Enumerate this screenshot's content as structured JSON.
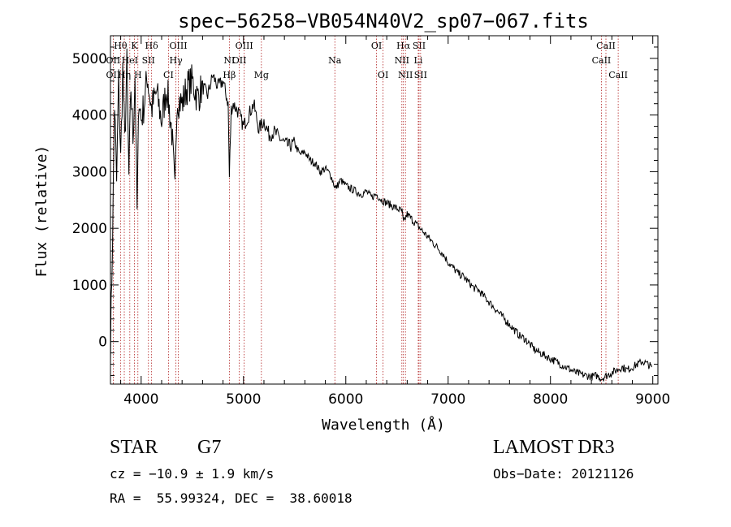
{
  "chart_data": {
    "type": "line",
    "title": "spec−56258−VB054N40V2_sp07−067.fits",
    "xlabel": "Wavelength (Å)",
    "ylabel": "Flux (relative)",
    "xlim": [
      3700,
      9050
    ],
    "ylim": [
      -750,
      5400
    ],
    "x_ticks": [
      4000,
      5000,
      6000,
      7000,
      8000,
      9000
    ],
    "y_ticks": [
      0,
      1000,
      2000,
      3000,
      4000,
      5000
    ],
    "series": [
      {
        "name": "flux",
        "x": [
          3700,
          3720,
          3740,
          3760,
          3780,
          3800,
          3820,
          3840,
          3860,
          3880,
          3900,
          3920,
          3940,
          3960,
          3980,
          4000,
          4030,
          4060,
          4100,
          4150,
          4200,
          4250,
          4300,
          4330,
          4350,
          4400,
          4450,
          4500,
          4550,
          4600,
          4650,
          4700,
          4750,
          4800,
          4850,
          4862,
          4880,
          4900,
          4950,
          5000,
          5050,
          5100,
          5150,
          5200,
          5250,
          5300,
          5350,
          5400,
          5450,
          5500,
          5550,
          5600,
          5650,
          5700,
          5750,
          5800,
          5850,
          5900,
          5950,
          6000,
          6050,
          6100,
          6150,
          6200,
          6250,
          6300,
          6350,
          6400,
          6450,
          6500,
          6550,
          6563,
          6600,
          6650,
          6700,
          6750,
          6800,
          6850,
          6900,
          6950,
          7000,
          7050,
          7100,
          7150,
          7200,
          7250,
          7300,
          7350,
          7400,
          7450,
          7500,
          7550,
          7600,
          7650,
          7700,
          7750,
          7800,
          7850,
          7900,
          7950,
          8000,
          8050,
          8100,
          8150,
          8200,
          8250,
          8300,
          8350,
          8400,
          8450,
          8500,
          8550,
          8600,
          8650,
          8700,
          8750,
          8800,
          8850,
          8900,
          8950,
          8990
        ],
        "y": [
          -100,
          1800,
          4200,
          2800,
          4600,
          3200,
          4800,
          3500,
          4900,
          2900,
          4500,
          3600,
          4700,
          2300,
          4400,
          3900,
          4200,
          4700,
          4100,
          4400,
          3900,
          4500,
          3700,
          2600,
          4300,
          4200,
          4500,
          4600,
          4300,
          4500,
          4350,
          4700,
          4500,
          4600,
          4200,
          2900,
          4100,
          4200,
          4050,
          3800,
          4000,
          4200,
          3750,
          3900,
          3650,
          3700,
          3600,
          3500,
          3450,
          3500,
          3300,
          3350,
          3200,
          3150,
          3000,
          3050,
          2950,
          2700,
          2850,
          2750,
          2700,
          2650,
          2600,
          2650,
          2550,
          2600,
          2500,
          2450,
          2400,
          2350,
          2300,
          2100,
          2250,
          2150,
          2050,
          1950,
          1850,
          1750,
          1650,
          1550,
          1400,
          1300,
          1200,
          1150,
          1050,
          950,
          900,
          800,
          700,
          600,
          500,
          400,
          300,
          200,
          100,
          50,
          -50,
          -150,
          -200,
          -250,
          -300,
          -350,
          -400,
          -450,
          -500,
          -550,
          -580,
          -600,
          -620,
          -600,
          -650,
          -600,
          -550,
          -500,
          -450,
          -500,
          -450,
          -400,
          -350,
          -400,
          -450
        ]
      }
    ],
    "lines": [
      {
        "label": "Hθ",
        "wave": 3798,
        "row": 0
      },
      {
        "label": "K",
        "wave": 3934,
        "row": 0
      },
      {
        "label": "Hδ",
        "wave": 4102,
        "row": 0
      },
      {
        "label": "OIII",
        "wave": 4363,
        "row": 0
      },
      {
        "label": "OIII",
        "wave": 5007,
        "row": 0
      },
      {
        "label": "OI",
        "wave": 6300,
        "row": 0
      },
      {
        "label": "Hα",
        "wave": 6563,
        "row": 0
      },
      {
        "label": "SII",
        "wave": 6716,
        "row": 0
      },
      {
        "label": "CaII",
        "wave": 8542,
        "row": 0
      },
      {
        "label": "OII",
        "wave": 3727,
        "row": 1
      },
      {
        "label": "HeI",
        "wave": 3889,
        "row": 1
      },
      {
        "label": "SII",
        "wave": 4071,
        "row": 1
      },
      {
        "label": "Hγ",
        "wave": 4340,
        "row": 1
      },
      {
        "label": "NI",
        "wave": 4862,
        "row": 1
      },
      {
        "label": "OII",
        "wave": 4959,
        "row": 1
      },
      {
        "label": "Na",
        "wave": 5893,
        "row": 1
      },
      {
        "label": "NII",
        "wave": 6548,
        "row": 1
      },
      {
        "label": "Li",
        "wave": 6708,
        "row": 1
      },
      {
        "label": "CaII",
        "wave": 8498,
        "row": 1
      },
      {
        "label": "OII",
        "wave": 3727,
        "row": 2
      },
      {
        "label": "Hη",
        "wave": 3835,
        "row": 2
      },
      {
        "label": "H",
        "wave": 3968,
        "row": 2
      },
      {
        "label": "CI",
        "wave": 4267,
        "row": 2
      },
      {
        "label": "Hβ",
        "wave": 4862,
        "row": 2
      },
      {
        "label": "Mg",
        "wave": 5175,
        "row": 2
      },
      {
        "label": "OI",
        "wave": 6364,
        "row": 2
      },
      {
        "label": "NII",
        "wave": 6583,
        "row": 2
      },
      {
        "label": "SII",
        "wave": 6731,
        "row": 2
      },
      {
        "label": "CaII",
        "wave": 8662,
        "row": 2
      }
    ]
  },
  "info": {
    "class_label": "STAR",
    "subclass": "G7",
    "survey": "LAMOST DR3",
    "cz": "cz = −10.9 ± 1.9 km/s",
    "obs_date": "Obs−Date: 20121126",
    "radec": "RA =  55.99324, DEC =  38.60018"
  }
}
